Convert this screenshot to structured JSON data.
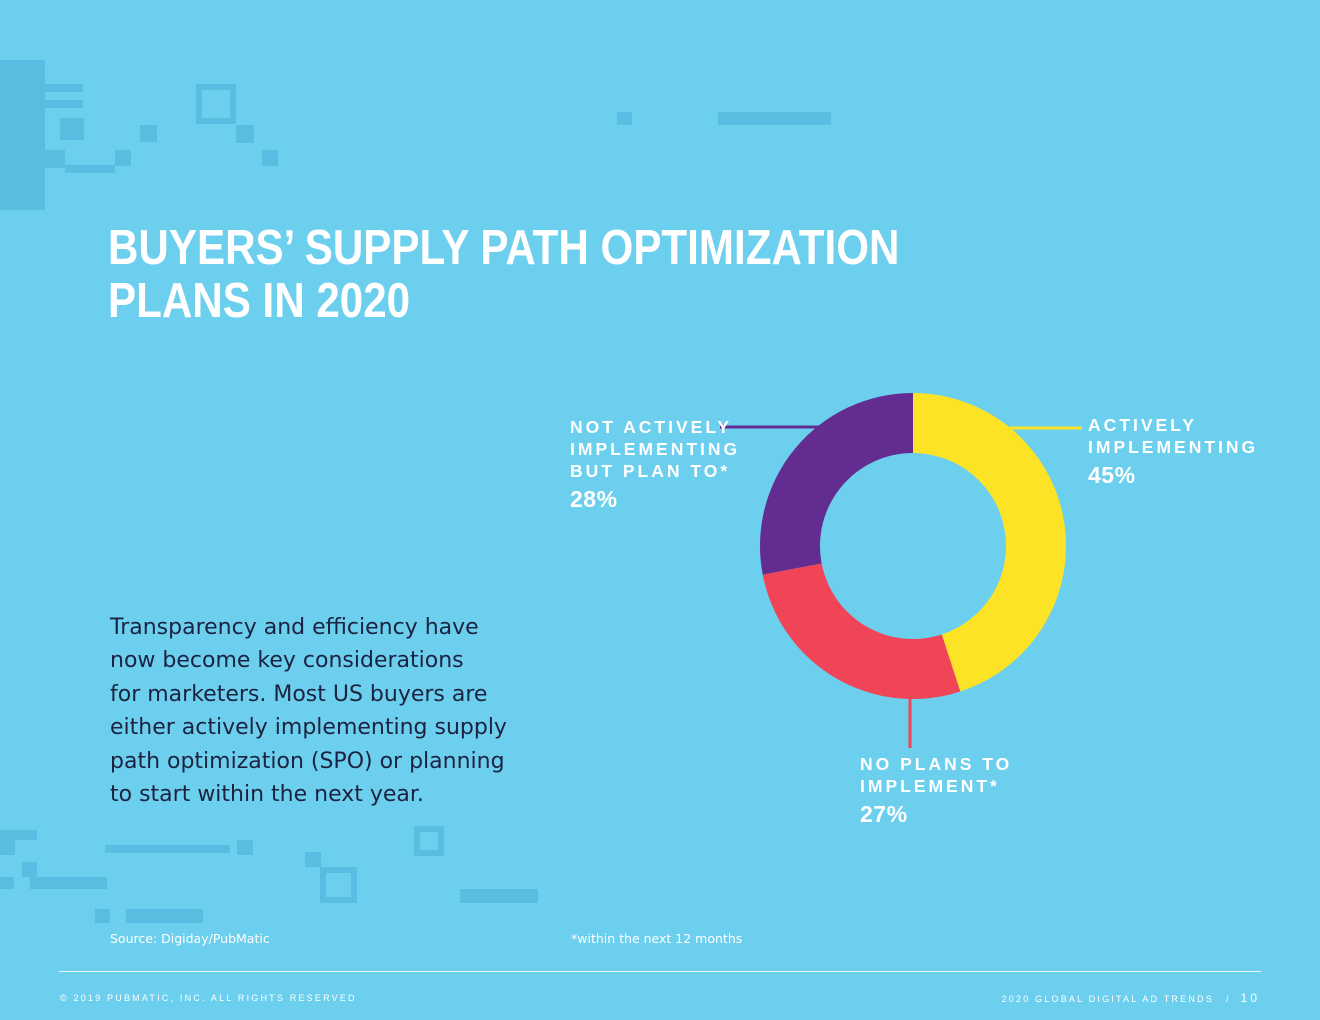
{
  "title": {
    "line1": "BUYERS’ SUPPLY PATH OPTIMIZATION",
    "line2": "PLANS IN 2020"
  },
  "body": {
    "lines": [
      "Transparency and efficiency have",
      "now become key considerations",
      "for marketers. Most US buyers are",
      "either actively implementing supply",
      "path optimization (SPO) or planning",
      "to start within the next year."
    ]
  },
  "chart_data": {
    "type": "pie",
    "variant": "donut",
    "title": "BUYERS’ SUPPLY PATH OPTIMIZATION PLANS IN 2020",
    "slices": [
      {
        "label_lines": [
          "ACTIVELY",
          "IMPLEMENTING"
        ],
        "value": 45,
        "display": "45%",
        "color": "#fde325"
      },
      {
        "label_lines": [
          "NO PLANS TO",
          "IMPLEMENT*"
        ],
        "value": 27,
        "display": "27%",
        "color": "#f04457"
      },
      {
        "label_lines": [
          "NOT ACTIVELY",
          "IMPLEMENTING",
          "BUT PLAN TO*"
        ],
        "value": 28,
        "display": "28%",
        "color": "#632c91"
      }
    ]
  },
  "notes": {
    "source": "Source: Digiday/PubMatic",
    "footnote": "*within the next 12 months"
  },
  "footer": {
    "copyright": "© 2019 PUBMATIC, INC. ALL RIGHTS RESERVED",
    "report": "2020 GLOBAL DIGITAL AD TRENDS",
    "separator": "/",
    "page": "10"
  },
  "colors": {
    "background": "#6ccfee",
    "decoration": "#58bde0",
    "body_text": "#1b2340"
  }
}
